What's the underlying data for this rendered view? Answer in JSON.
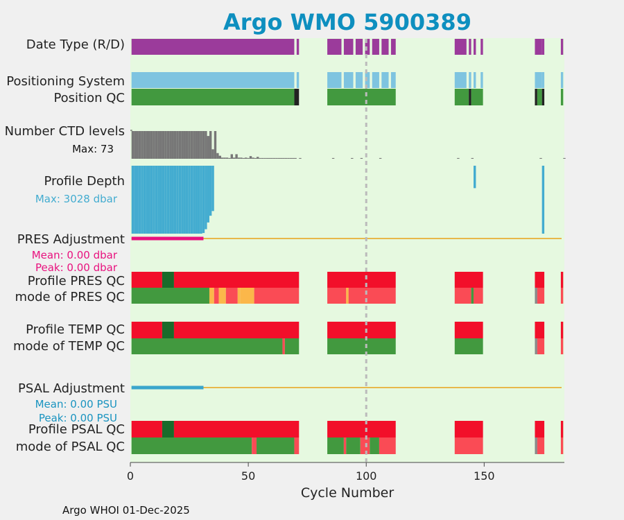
{
  "chart_data": {
    "type": "bar",
    "title": "Argo WMO 5900389",
    "xlabel": "Cycle Number",
    "xlim": [
      0,
      184
    ],
    "xticks": [
      0,
      50,
      100,
      150
    ],
    "grid": "vertical dashed at 100",
    "footer": "Argo WHOI 01-Dec-2025",
    "labels": {
      "date_type": "Date Type (R/D)",
      "positioning_system": "Positioning System",
      "position_qc": "Position QC",
      "ctd_levels": "Number CTD levels",
      "ctd_max": "Max: 73",
      "profile_depth": "Profile Depth",
      "depth_max": "Max: 3028 dbar",
      "pres_adj": "PRES Adjustment",
      "pres_mean": "Mean: 0.00 dbar",
      "pres_peak": "Peak: 0.00 dbar",
      "profile_pres_qc": "Profile PRES QC",
      "mode_pres_qc": "mode of PRES QC",
      "profile_temp_qc": "Profile TEMP QC",
      "mode_temp_qc": "mode of TEMP QC",
      "psal_adj": "PSAL Adjustment",
      "psal_mean": "Mean: 0.00 PSU",
      "psal_peak": "Peak: 0.00 PSU",
      "profile_psal_qc": "Profile PSAL QC",
      "mode_psal_qc": "mode of PSAL QC"
    },
    "colors": {
      "title": "#0e8fbf",
      "background": "#e6f9e0",
      "date": "#9b3b9b",
      "position_system": "#7ec4e0",
      "good": "#42993f",
      "dark_good": "#1a6b2a",
      "black": "#222222",
      "red": "#f20f2a",
      "light_red": "#fa4b55",
      "orange": "#fbb74a",
      "gray": "#888888",
      "ctd": "#777777",
      "depth": "#43acd0",
      "pres_adj": "#e8117e",
      "psal_adj": "#3aa6cc",
      "zero_line": "#e8b84a",
      "pres_mean_text": "#e8117e",
      "psal_mean_text": "#1a94c0"
    },
    "cycle_groups": [
      [
        1,
        70
      ],
      [
        71,
        72
      ],
      [
        84,
        90
      ],
      [
        91,
        95
      ],
      [
        96,
        99
      ],
      [
        100,
        102
      ],
      [
        103,
        106
      ],
      [
        107,
        110
      ],
      [
        111,
        113
      ],
      [
        138,
        143
      ],
      [
        144,
        145
      ],
      [
        146,
        147
      ],
      [
        149,
        150
      ],
      [
        172,
        175
      ],
      [
        175,
        176
      ],
      [
        183,
        184
      ]
    ],
    "ctd_levels": [
      [
        1,
        73
      ],
      [
        2,
        73
      ],
      [
        3,
        73
      ],
      [
        4,
        73
      ],
      [
        5,
        73
      ],
      [
        6,
        73
      ],
      [
        7,
        73
      ],
      [
        8,
        73
      ],
      [
        9,
        73
      ],
      [
        10,
        73
      ],
      [
        11,
        73
      ],
      [
        12,
        73
      ],
      [
        13,
        73
      ],
      [
        14,
        73
      ],
      [
        15,
        73
      ],
      [
        16,
        73
      ],
      [
        17,
        73
      ],
      [
        18,
        73
      ],
      [
        19,
        73
      ],
      [
        20,
        73
      ],
      [
        21,
        73
      ],
      [
        22,
        73
      ],
      [
        23,
        73
      ],
      [
        24,
        73
      ],
      [
        25,
        73
      ],
      [
        26,
        73
      ],
      [
        27,
        73
      ],
      [
        28,
        73
      ],
      [
        29,
        73
      ],
      [
        30,
        73
      ],
      [
        31,
        73
      ],
      [
        32,
        73
      ],
      [
        33,
        60
      ],
      [
        34,
        73
      ],
      [
        35,
        25
      ],
      [
        36,
        73
      ],
      [
        37,
        15
      ],
      [
        38,
        8
      ],
      [
        39,
        3
      ],
      [
        40,
        3
      ],
      [
        41,
        3
      ],
      [
        42,
        2
      ],
      [
        43,
        12
      ],
      [
        44,
        3
      ],
      [
        45,
        12
      ],
      [
        46,
        3
      ],
      [
        47,
        3
      ],
      [
        48,
        2
      ],
      [
        49,
        3
      ],
      [
        50,
        2
      ],
      [
        51,
        7
      ],
      [
        52,
        3
      ],
      [
        53,
        2
      ],
      [
        54,
        5
      ],
      [
        55,
        2
      ],
      [
        56,
        2
      ],
      [
        57,
        2
      ],
      [
        58,
        2
      ],
      [
        59,
        2
      ],
      [
        60,
        2
      ],
      [
        61,
        2
      ],
      [
        62,
        2
      ],
      [
        63,
        2
      ],
      [
        64,
        2
      ],
      [
        65,
        2
      ],
      [
        66,
        2
      ],
      [
        67,
        2
      ],
      [
        68,
        2
      ],
      [
        69,
        2
      ],
      [
        70,
        2
      ],
      [
        72,
        2
      ],
      [
        86,
        2
      ],
      [
        94,
        2
      ],
      [
        98,
        2
      ],
      [
        106,
        2
      ],
      [
        139,
        2
      ],
      [
        145,
        2
      ],
      [
        174,
        2
      ],
      [
        184,
        2
      ]
    ],
    "profile_depth": [
      [
        1,
        3028
      ],
      [
        2,
        3028
      ],
      [
        3,
        3028
      ],
      [
        4,
        3028
      ],
      [
        5,
        3028
      ],
      [
        6,
        3028
      ],
      [
        7,
        3028
      ],
      [
        8,
        3028
      ],
      [
        9,
        3028
      ],
      [
        10,
        3028
      ],
      [
        11,
        3028
      ],
      [
        12,
        3028
      ],
      [
        13,
        3028
      ],
      [
        14,
        3028
      ],
      [
        15,
        3028
      ],
      [
        16,
        3028
      ],
      [
        17,
        3028
      ],
      [
        18,
        3028
      ],
      [
        19,
        3028
      ],
      [
        20,
        3028
      ],
      [
        21,
        3028
      ],
      [
        22,
        3028
      ],
      [
        23,
        3028
      ],
      [
        24,
        3028
      ],
      [
        25,
        3028
      ],
      [
        26,
        3028
      ],
      [
        27,
        3028
      ],
      [
        28,
        3028
      ],
      [
        29,
        3028
      ],
      [
        30,
        3028
      ],
      [
        31,
        3000
      ],
      [
        32,
        2830
      ],
      [
        33,
        2530
      ],
      [
        34,
        2230
      ],
      [
        35,
        2020
      ],
      [
        146,
        1000
      ],
      [
        175,
        3028
      ]
    ],
    "pres_adj_mean": [
      [
        0.5,
        0
      ],
      [
        31,
        0
      ]
    ],
    "psal_adj_mean": [
      [
        0.5,
        0
      ],
      [
        31,
        0
      ]
    ],
    "mode_pres_qc_segments": [
      [
        1,
        34,
        "good"
      ],
      [
        34,
        36,
        "orange"
      ],
      [
        36,
        38,
        "light_red"
      ],
      [
        38,
        41,
        "orange"
      ],
      [
        41,
        46,
        "light_red"
      ],
      [
        46,
        47,
        "orange"
      ],
      [
        47,
        53,
        "orange"
      ],
      [
        53,
        72,
        "light_red"
      ],
      [
        84,
        92,
        "light_red"
      ],
      [
        92,
        93,
        "orange"
      ],
      [
        93,
        113,
        "light_red"
      ],
      [
        138,
        145,
        "light_red"
      ],
      [
        145,
        146,
        "good"
      ],
      [
        146,
        150,
        "light_red"
      ],
      [
        172,
        173,
        "gray"
      ],
      [
        173,
        176,
        "light_red"
      ],
      [
        183,
        184,
        "light_red"
      ]
    ],
    "mode_temp_qc_segments": [
      [
        1,
        65,
        "good"
      ],
      [
        65,
        66,
        "light_red"
      ],
      [
        66,
        72,
        "good"
      ],
      [
        84,
        113,
        "good"
      ],
      [
        138,
        150,
        "good"
      ],
      [
        172,
        173,
        "gray"
      ],
      [
        173,
        176,
        "light_red"
      ],
      [
        183,
        184,
        "light_red"
      ]
    ],
    "mode_psal_qc_segments": [
      [
        1,
        52,
        "good"
      ],
      [
        52,
        54,
        "light_red"
      ],
      [
        54,
        70,
        "good"
      ],
      [
        70,
        72,
        "light_red"
      ],
      [
        84,
        91,
        "good"
      ],
      [
        91,
        92,
        "light_red"
      ],
      [
        92,
        98,
        "good"
      ],
      [
        98,
        102,
        "light_red"
      ],
      [
        102,
        106,
        "good"
      ],
      [
        106,
        113,
        "light_red"
      ],
      [
        138,
        150,
        "light_red"
      ],
      [
        172,
        173,
        "gray"
      ],
      [
        173,
        176,
        "light_red"
      ],
      [
        183,
        184,
        "light_red"
      ]
    ],
    "profile_qc_segments": [
      [
        1,
        14,
        "red"
      ],
      [
        14,
        19,
        "dark_good"
      ],
      [
        19,
        72,
        "red"
      ],
      [
        84,
        113,
        "red"
      ],
      [
        138,
        150,
        "red"
      ],
      [
        172,
        176,
        "red"
      ],
      [
        183,
        184,
        "red"
      ]
    ],
    "position_qc_segments": [
      [
        1,
        70,
        "good"
      ],
      [
        70,
        72,
        "black"
      ],
      [
        84,
        113,
        "good"
      ],
      [
        138,
        144,
        "good"
      ],
      [
        144,
        145,
        "black"
      ],
      [
        145,
        150,
        "good"
      ],
      [
        172,
        173,
        "black"
      ],
      [
        173,
        175,
        "good"
      ],
      [
        175,
        176,
        "black"
      ],
      [
        183,
        184,
        "good"
      ]
    ]
  }
}
